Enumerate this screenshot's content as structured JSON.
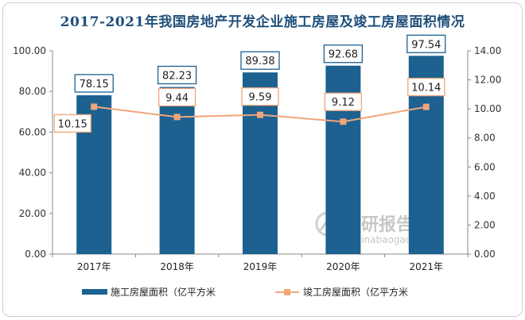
{
  "chart_data": {
    "type": "bar",
    "title": "2017-2021年我国房地产开发企业施工房屋及竣工房屋面积情况",
    "categories": [
      "2017年",
      "2018年",
      "2019年",
      "2020年",
      "2021年"
    ],
    "series": [
      {
        "name": "施工房屋面积（亿平方米",
        "type": "bar",
        "axis": "left",
        "values": [
          78.15,
          82.23,
          89.38,
          92.68,
          97.54
        ],
        "labels": [
          "78.15",
          "82.23",
          "89.38",
          "92.68",
          "97.54"
        ],
        "color": "#1c6190"
      },
      {
        "name": "竣工房屋面积（亿平方米",
        "type": "line",
        "axis": "right",
        "values": [
          10.15,
          9.44,
          9.59,
          9.12,
          10.14
        ],
        "labels": [
          "10.15",
          "9.44",
          "9.59",
          "9.12",
          "10.14"
        ],
        "color": "#f0a57a"
      }
    ],
    "y_left": {
      "min": 0,
      "max": 100,
      "ticks": [
        "0.00",
        "20.00",
        "40.00",
        "60.00",
        "80.00",
        "100.00"
      ]
    },
    "y_right": {
      "min": 0,
      "max": 14,
      "ticks": [
        "0.00",
        "2.00",
        "4.00",
        "6.00",
        "8.00",
        "10.00",
        "12.00",
        "14.00"
      ]
    },
    "grid": false,
    "legend_position": "bottom"
  },
  "watermark": {
    "main": "观研报告网",
    "sub": "chinabaogao.com"
  }
}
